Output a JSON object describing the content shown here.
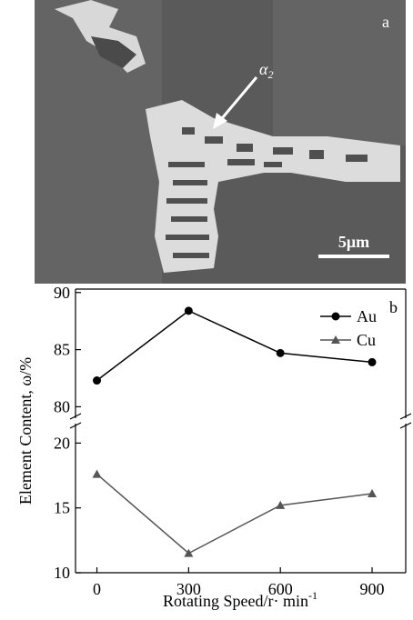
{
  "image": {
    "panel_label": "a",
    "annotation": "α",
    "annotation_sub": "2",
    "scale_bar": "5μm"
  },
  "chart_data": {
    "type": "line",
    "panel_label": "b",
    "ylabel": "Element Content, ω/%",
    "xlabel": "Rotating Speed/r· min",
    "xlabel_sup": "-1",
    "x": [
      0,
      300,
      600,
      900
    ],
    "xlim": [
      -70,
      1010
    ],
    "xticks": [
      0,
      300,
      600,
      900
    ],
    "segments": [
      {
        "ylim": [
          79,
          90.3
        ],
        "yticks": [
          80,
          85,
          90
        ]
      },
      {
        "ylim": [
          10,
          21.5
        ],
        "yticks": [
          10,
          15,
          20
        ]
      }
    ],
    "legend": "upper right",
    "series": [
      {
        "name": "Au",
        "color": "#000000",
        "marker": "circle",
        "values": [
          82.3,
          88.4,
          84.7,
          83.9
        ]
      },
      {
        "name": "Cu",
        "color": "#555555",
        "marker": "triangle",
        "values": [
          17.6,
          11.5,
          15.2,
          16.1
        ]
      }
    ]
  }
}
